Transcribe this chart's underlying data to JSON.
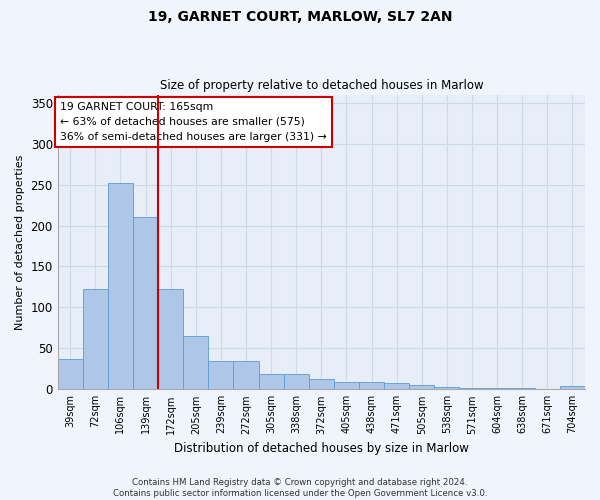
{
  "title1": "19, GARNET COURT, MARLOW, SL7 2AN",
  "title2": "Size of property relative to detached houses in Marlow",
  "xlabel": "Distribution of detached houses by size in Marlow",
  "ylabel": "Number of detached properties",
  "categories": [
    "39sqm",
    "72sqm",
    "106sqm",
    "139sqm",
    "172sqm",
    "205sqm",
    "239sqm",
    "272sqm",
    "305sqm",
    "338sqm",
    "372sqm",
    "405sqm",
    "438sqm",
    "471sqm",
    "505sqm",
    "538sqm",
    "571sqm",
    "604sqm",
    "638sqm",
    "671sqm",
    "704sqm"
  ],
  "values": [
    37,
    123,
    252,
    211,
    123,
    65,
    35,
    35,
    19,
    19,
    13,
    9,
    9,
    8,
    5,
    3,
    2,
    1,
    1,
    0,
    4
  ],
  "bar_color": "#aec6e8",
  "bar_edge_color": "#5b9bd5",
  "vline_position": 3.5,
  "vline_color": "#cc0000",
  "annotation_text": "19 GARNET COURT: 165sqm\n← 63% of detached houses are smaller (575)\n36% of semi-detached houses are larger (331) →",
  "annotation_box_color": "#ffffff",
  "annotation_box_edge": "#cc0000",
  "ylim": [
    0,
    360
  ],
  "yticks": [
    0,
    50,
    100,
    150,
    200,
    250,
    300,
    350
  ],
  "grid_color": "#d0d8e8",
  "bg_color": "#e8eef8",
  "fig_bg_color": "#f0f4fc",
  "footer": "Contains HM Land Registry data © Crown copyright and database right 2024.\nContains public sector information licensed under the Open Government Licence v3.0."
}
